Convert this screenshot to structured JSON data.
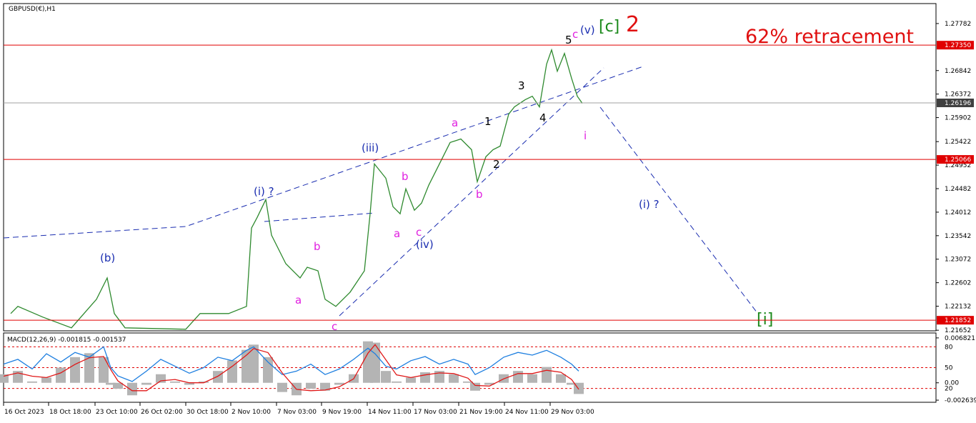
{
  "chart_data": [
    {
      "type": "line",
      "title": "GBPUSD(€),H1",
      "x": [
        10,
        20,
        55,
        95,
        130,
        145,
        155,
        170,
        255,
        275,
        315,
        340,
        347,
        355,
        367,
        375,
        395,
        415,
        425,
        440,
        450,
        465,
        485,
        505,
        513,
        519,
        535,
        545,
        555,
        563,
        575,
        585,
        595,
        605,
        625,
        640,
        655,
        663,
        675,
        685,
        695,
        707,
        715,
        730,
        740,
        750,
        760,
        767,
        775,
        785,
        795,
        803,
        810
      ],
      "values": [
        1.21985,
        1.22128,
        1.21914,
        1.217,
        1.2227,
        1.22697,
        1.21985,
        1.217,
        1.21672,
        1.21985,
        1.21985,
        1.22128,
        1.23694,
        1.23908,
        1.24264,
        1.23552,
        1.22982,
        1.22697,
        1.22911,
        1.2284,
        1.2227,
        1.22128,
        1.22413,
        1.2284,
        1.23979,
        1.24976,
        1.24691,
        1.24122,
        1.23979,
        1.24478,
        1.24051,
        1.24193,
        1.24549,
        1.24834,
        1.25404,
        1.25475,
        1.25261,
        1.2462,
        1.25119,
        1.25261,
        1.25332,
        1.25973,
        1.26116,
        1.26258,
        1.26329,
        1.26116,
        1.2697,
        1.27255,
        1.26828,
        1.27184,
        1.26685,
        1.26329,
        1.26187
      ],
      "color": "#2f8a2f",
      "xlim": [
        0,
        1305
      ],
      "xticks": [
        {
          "value": 0,
          "label": "16 Oct 2023"
        },
        {
          "value": 63,
          "label": "18 Oct 18:00"
        },
        {
          "value": 128,
          "label": "23 Oct 10:00"
        },
        {
          "value": 191,
          "label": "26 Oct 02:00"
        },
        {
          "value": 255,
          "label": "30 Oct 18:00"
        },
        {
          "value": 318,
          "label": "2 Nov 10:00"
        },
        {
          "value": 382,
          "label": "7 Nov 03:00"
        },
        {
          "value": 445,
          "label": "9 Nov 19:00"
        },
        {
          "value": 509,
          "label": "14 Nov 11:00"
        },
        {
          "value": 573,
          "label": "17 Nov 03:00"
        },
        {
          "value": 637,
          "label": "21 Nov 19:00"
        },
        {
          "value": 701,
          "label": "24 Nov 11:00"
        },
        {
          "value": 765,
          "label": "29 Nov 03:00"
        }
      ],
      "ylim": [
        1.2164,
        1.28181
      ],
      "yticks": [
        1.27782,
        1.26842,
        1.26372,
        1.25902,
        1.25422,
        1.24952,
        1.24482,
        1.24012,
        1.23542,
        1.23072,
        1.22602,
        1.22132,
        1.21652
      ],
      "levels": [
        {
          "value": 1.2735,
          "label": "1.27350"
        },
        {
          "value": 1.25066,
          "label": "1.25066"
        },
        {
          "value": 1.21852,
          "label": "1.21852"
        }
      ],
      "level_color": "#e00000",
      "current_price": {
        "value": 1.26196,
        "label": "1.26196"
      },
      "annotations": [
        "(b)",
        "(i) ?",
        "(iii)",
        "(iv)",
        "(v)",
        "c",
        "5",
        "[c]",
        "2",
        "62% retracement",
        "a",
        "b",
        "a",
        "c",
        "b",
        "a",
        "c",
        "1",
        "2",
        "3",
        "4",
        "b",
        "i",
        "(i) ?",
        "[i]"
      ]
    },
    {
      "type": "macd",
      "title": "MACD(12,26,9) -0.001815 -0.001537",
      "x": [
        0,
        20,
        40,
        60,
        80,
        100,
        120,
        140,
        150,
        160,
        180,
        200,
        220,
        240,
        260,
        280,
        300,
        320,
        340,
        350,
        370,
        390,
        410,
        430,
        450,
        470,
        490,
        510,
        520,
        535,
        550,
        570,
        590,
        610,
        630,
        650,
        660,
        680,
        700,
        720,
        740,
        760,
        780,
        795,
        805
      ],
      "histogram": {
        "color": "#b4b4b4",
        "values": [
          0.0013,
          0.0018,
          0.0002,
          0.0008,
          0.0023,
          0.0039,
          0.0045,
          0.0039,
          -0.0003,
          -0.0009,
          -0.0019,
          -0.0003,
          0.0013,
          0.0002,
          -0.0003,
          0.0002,
          0.0018,
          0.0034,
          0.005,
          0.0058,
          0.0039,
          -0.0014,
          -0.0019,
          -0.0009,
          -0.0012,
          -0.0003,
          0.0013,
          0.0063,
          0.0061,
          0.0018,
          0.0002,
          0.0008,
          0.0016,
          0.0018,
          0.0013,
          0.0002,
          -0.0012,
          -0.0003,
          0.0013,
          0.0018,
          0.0013,
          0.0024,
          0.0013,
          -0.0003,
          -0.0017
        ]
      },
      "signal": {
        "color": "#e01818",
        "values": [
          0.001,
          0.0015,
          0.001,
          0.0008,
          0.0015,
          0.0028,
          0.0038,
          0.004,
          0.002,
          0.0003,
          -0.0012,
          -0.0012,
          0.0003,
          0.0005,
          0,
          0,
          0.001,
          0.0025,
          0.0042,
          0.0052,
          0.0046,
          0.0015,
          -0.001,
          -0.0012,
          -0.0011,
          -0.0006,
          0.0006,
          0.0045,
          0.0058,
          0.0035,
          0.0012,
          0.0008,
          0.0012,
          0.0015,
          0.0014,
          0.0007,
          -0.0004,
          -0.0005,
          0.0006,
          0.0014,
          0.0014,
          0.0019,
          0.0016,
          0.0005,
          -0.001
        ]
      },
      "oscillator": {
        "color": "#1e7fe0",
        "axis": "y2",
        "values": [
          55,
          62,
          48,
          70,
          58,
          72,
          65,
          80,
          50,
          38,
          30,
          45,
          62,
          52,
          42,
          50,
          65,
          60,
          75,
          80,
          58,
          40,
          45,
          55,
          40,
          48,
          62,
          78,
          70,
          52,
          48,
          60,
          66,
          55,
          62,
          55,
          40,
          50,
          65,
          72,
          68,
          75,
          65,
          55,
          45
        ]
      },
      "ylim": [
        -0.00296,
        0.00757
      ],
      "yticks": [
        0.006821,
        {
          "value": 0,
          "label": "0.00"
        },
        -0.002639
      ],
      "y2lim": [
        0,
        100
      ],
      "y2ticks": [
        80,
        50,
        20
      ],
      "y2_line_color": "#e00000"
    }
  ]
}
